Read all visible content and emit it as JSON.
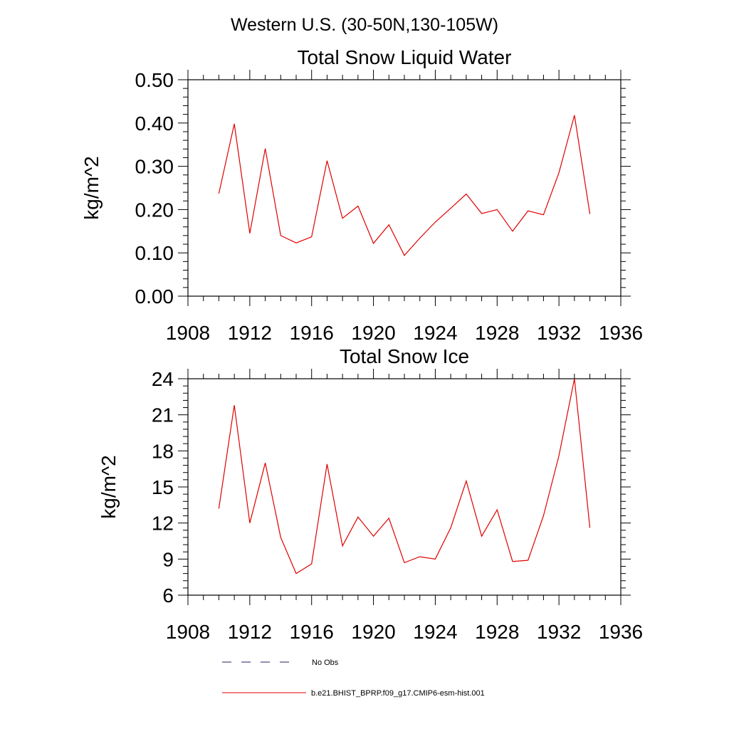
{
  "figure": {
    "suptitle": "Western U.S. (30-50N,130-105W)"
  },
  "legend": {
    "position": "bottom-center",
    "entries": [
      {
        "label": "No Obs",
        "color": "#1f1f5f",
        "dash": true
      },
      {
        "label": "b.e21.BHIST_BPRP.f09_g17.CMIP6-esm-hist.001",
        "color": "#e00000",
        "dash": false
      }
    ]
  },
  "chart_data": [
    {
      "type": "line",
      "title": "Total Snow Liquid Water",
      "xlabel": "",
      "ylabel": "kg/m^2",
      "xlim": [
        1908,
        1936
      ],
      "ylim": [
        0.0,
        0.5
      ],
      "xticks": [
        1908,
        1912,
        1916,
        1920,
        1924,
        1928,
        1932,
        1936
      ],
      "xtick_labels": [
        "1908",
        "1912",
        "1916",
        "1920",
        "1924",
        "1928",
        "1932",
        "1936"
      ],
      "yticks": [
        0.0,
        0.1,
        0.2,
        0.3,
        0.4,
        0.5
      ],
      "ytick_labels": [
        "0.00",
        "0.10",
        "0.20",
        "0.30",
        "0.40",
        "0.50"
      ],
      "grid": false,
      "x": [
        1910,
        1911,
        1912,
        1913,
        1914,
        1915,
        1916,
        1917,
        1918,
        1919,
        1920,
        1921,
        1922,
        1923,
        1924,
        1925,
        1926,
        1927,
        1928,
        1929,
        1930,
        1931,
        1932,
        1933,
        1934
      ],
      "series": [
        {
          "name": "b.e21.BHIST_BPRP.f09_g17.CMIP6-esm-hist.001",
          "color": "#e00000",
          "values": [
            0.237,
            0.398,
            0.145,
            0.341,
            0.14,
            0.123,
            0.137,
            0.313,
            0.18,
            0.208,
            0.122,
            0.165,
            0.094,
            0.134,
            0.171,
            0.203,
            0.236,
            0.191,
            0.2,
            0.15,
            0.197,
            0.188,
            0.285,
            0.418,
            0.19
          ]
        }
      ]
    },
    {
      "type": "line",
      "title": "Total Snow Ice",
      "xlabel": "",
      "ylabel": "kg/m^2",
      "xlim": [
        1908,
        1936
      ],
      "ylim": [
        6,
        24
      ],
      "xticks": [
        1908,
        1912,
        1916,
        1920,
        1924,
        1928,
        1932,
        1936
      ],
      "xtick_labels": [
        "1908",
        "1912",
        "1916",
        "1920",
        "1924",
        "1928",
        "1932",
        "1936"
      ],
      "yticks": [
        6,
        9,
        12,
        15,
        18,
        21,
        24
      ],
      "ytick_labels": [
        "6",
        "9",
        "12",
        "15",
        "18",
        "21",
        "24"
      ],
      "grid": false,
      "x": [
        1910,
        1911,
        1912,
        1913,
        1914,
        1915,
        1916,
        1917,
        1918,
        1919,
        1920,
        1921,
        1922,
        1923,
        1924,
        1925,
        1926,
        1927,
        1928,
        1929,
        1930,
        1931,
        1932,
        1933,
        1934
      ],
      "series": [
        {
          "name": "b.e21.BHIST_BPRP.f09_g17.CMIP6-esm-hist.001",
          "color": "#e00000",
          "values": [
            13.2,
            21.8,
            12.0,
            17.0,
            10.8,
            7.8,
            8.6,
            16.9,
            10.1,
            12.5,
            10.9,
            12.4,
            8.7,
            9.2,
            9.0,
            11.6,
            15.5,
            10.9,
            13.1,
            8.8,
            8.9,
            12.6,
            17.6,
            24.0,
            11.6
          ]
        }
      ]
    }
  ]
}
